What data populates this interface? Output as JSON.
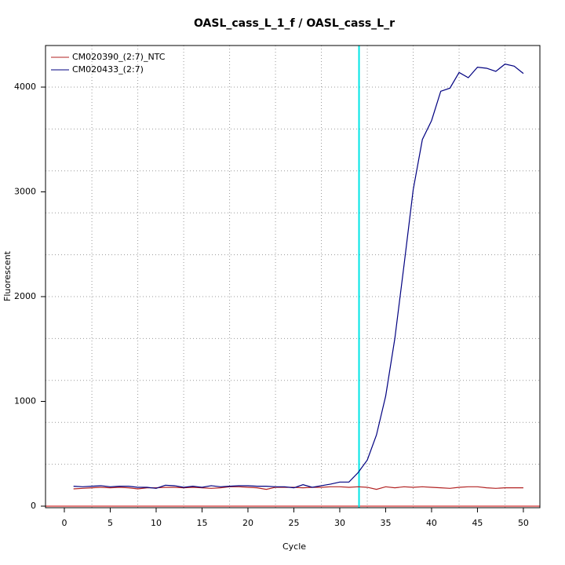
{
  "chart_data": {
    "type": "line",
    "title": "OASL_cass_L_1_f / OASL_cass_L_r",
    "x_label": "Cycle",
    "y_label": "Fluorescent",
    "x": [
      1,
      2,
      3,
      4,
      5,
      6,
      7,
      8,
      9,
      10,
      11,
      12,
      13,
      14,
      15,
      16,
      17,
      18,
      19,
      20,
      21,
      22,
      23,
      24,
      25,
      26,
      27,
      28,
      29,
      30,
      31,
      32,
      33,
      34,
      35,
      36,
      37,
      38,
      39,
      40,
      41,
      42,
      43,
      44,
      45,
      46,
      47,
      48,
      49,
      50
    ],
    "series": [
      {
        "name": "CM020390_(2:7)_NTC",
        "color": "#b22222",
        "values": [
          165,
          170,
          175,
          180,
          175,
          180,
          175,
          165,
          175,
          175,
          180,
          180,
          175,
          180,
          175,
          170,
          175,
          185,
          185,
          180,
          175,
          160,
          180,
          180,
          180,
          175,
          180,
          180,
          185,
          185,
          180,
          185,
          180,
          160,
          185,
          175,
          185,
          180,
          185,
          180,
          175,
          170,
          180,
          185,
          185,
          175,
          170,
          175,
          175,
          175
        ]
      },
      {
        "name": "CM020433_(2:7)",
        "color": "#000080",
        "values": [
          190,
          185,
          190,
          195,
          185,
          190,
          190,
          180,
          180,
          170,
          200,
          195,
          180,
          190,
          180,
          195,
          185,
          190,
          195,
          195,
          190,
          190,
          185,
          185,
          175,
          205,
          180,
          195,
          210,
          230,
          230,
          320,
          440,
          680,
          1050,
          1600,
          2300,
          3020,
          3500,
          3680,
          3960,
          3990,
          4140,
          4090,
          4190,
          4180,
          4150,
          4220,
          4200,
          4130
        ]
      }
    ],
    "xlim": [
      -2.05,
      51.8
    ],
    "ylim": [
      -15,
      4397
    ],
    "xticks": [
      0,
      5,
      10,
      15,
      20,
      25,
      30,
      35,
      40,
      45,
      50
    ],
    "yticks": [
      0,
      1000,
      2000,
      3000,
      4000
    ],
    "x_grid": [
      3,
      8,
      13,
      18,
      23,
      28,
      33,
      38,
      43,
      48
    ],
    "y_grid": [
      0,
      400,
      800,
      1200,
      1600,
      2000,
      2400,
      2800,
      3200,
      3600,
      4000
    ],
    "threshold_x": 32.1,
    "threshold_color": "#00e5e5",
    "baseline_y": 0,
    "baseline_color": "#cc0000",
    "legend": "top-left"
  }
}
